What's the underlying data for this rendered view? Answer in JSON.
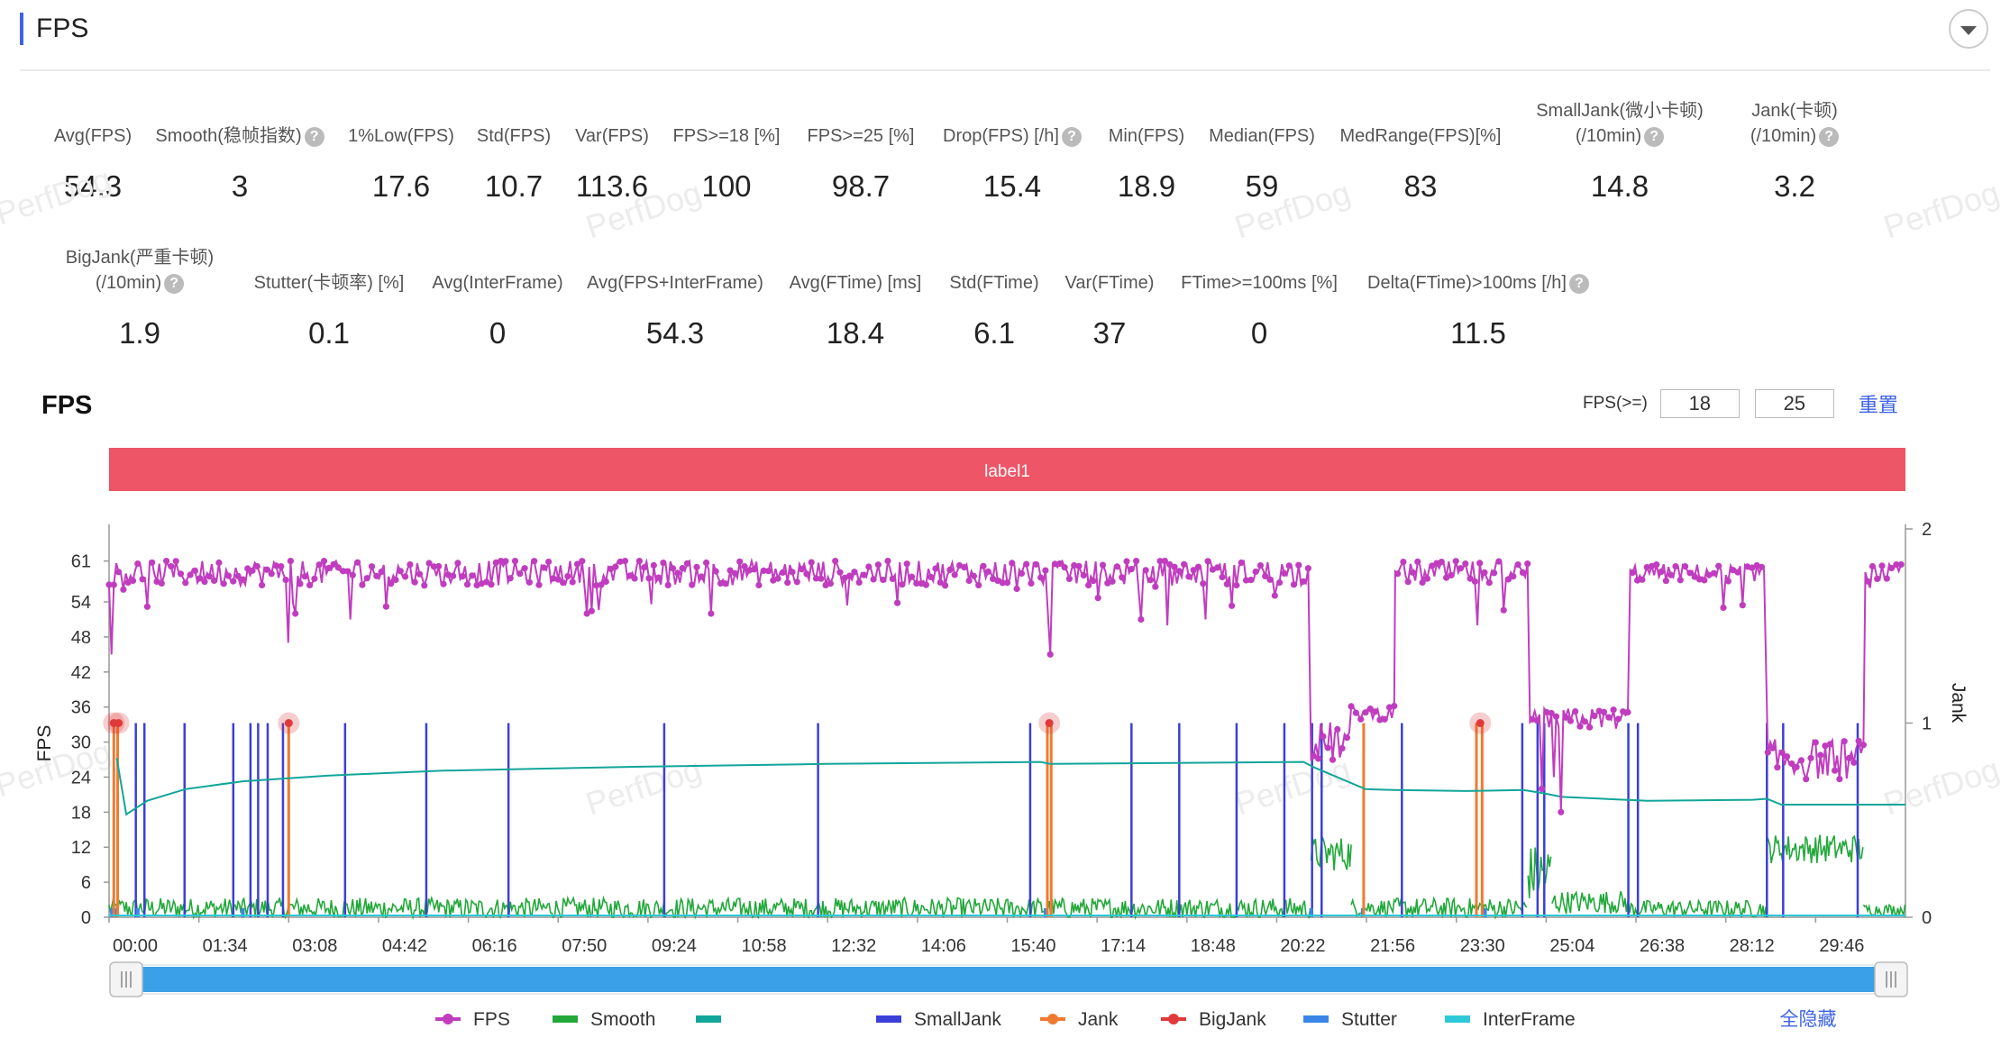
{
  "header": {
    "title": "FPS"
  },
  "metrics_row1": [
    {
      "label": "Avg(FPS)",
      "value": "54.3",
      "cx": 103,
      "help": false
    },
    {
      "label": "Smooth(稳帧指数)",
      "value": "3",
      "cx": 266,
      "help": true
    },
    {
      "label": "1%Low(FPS)",
      "value": "17.6",
      "cx": 445,
      "help": false
    },
    {
      "label": "Std(FPS)",
      "value": "10.7",
      "cx": 570,
      "help": false
    },
    {
      "label": "Var(FPS)",
      "value": "113.6",
      "cx": 679,
      "help": false
    },
    {
      "label": "FPS>=18 [%]",
      "value": "100",
      "cx": 806,
      "help": false
    },
    {
      "label": "FPS>=25 [%]",
      "value": "98.7",
      "cx": 955,
      "help": false
    },
    {
      "label": "Drop(FPS) [/h]",
      "value": "15.4",
      "cx": 1123,
      "help": true
    },
    {
      "label": "Min(FPS)",
      "value": "18.9",
      "cx": 1272,
      "help": false
    },
    {
      "label": "Median(FPS)",
      "value": "59",
      "cx": 1400,
      "help": false
    },
    {
      "label": "MedRange(FPS)[%]",
      "value": "83",
      "cx": 1576,
      "help": false
    },
    {
      "label": "SmallJank(微小卡顿)",
      "label2": "(/10min)",
      "value": "14.8",
      "cx": 1797,
      "help": true
    },
    {
      "label": "Jank(卡顿)",
      "label2": "(/10min)",
      "value": "3.2",
      "cx": 1991,
      "help": true
    }
  ],
  "metrics_row2": [
    {
      "label": "BigJank(严重卡顿)",
      "label2": "(/10min)",
      "value": "1.9",
      "cx": 155,
      "help": true
    },
    {
      "label": "Stutter(卡顿率) [%]",
      "value": "0.1",
      "cx": 365,
      "help": false
    },
    {
      "label": "Avg(InterFrame)",
      "value": "0",
      "cx": 552,
      "help": false
    },
    {
      "label": "Avg(FPS+InterFrame)",
      "value": "54.3",
      "cx": 749,
      "help": false
    },
    {
      "label": "Avg(FTime) [ms]",
      "value": "18.4",
      "cx": 949,
      "help": false
    },
    {
      "label": "Std(FTime)",
      "value": "6.1",
      "cx": 1103,
      "help": false
    },
    {
      "label": "Var(FTime)",
      "value": "37",
      "cx": 1231,
      "help": false
    },
    {
      "label": "FTime>=100ms [%]",
      "value": "0",
      "cx": 1397,
      "help": false
    },
    {
      "label": "Delta(FTime)>100ms [/h]",
      "value": "11.5",
      "cx": 1640,
      "help": true
    }
  ],
  "chart_section": {
    "title": "FPS",
    "fps_threshold_label": "FPS(>=)",
    "threshold_low": "18",
    "threshold_high": "25",
    "reset_label": "重置",
    "hide_all_label": "全隐藏"
  },
  "watermark": "PerfDog",
  "colors": {
    "fps": "#c03dbf",
    "smooth": "#22a83a",
    "teal": "#11a59a",
    "small_jank": "#3b3fd9",
    "jank": "#f07a30",
    "big_jank": "#e13a3a",
    "stutter": "#3a86e8",
    "interframe": "#2ec8d8",
    "banner": "#ee5566",
    "accent": "#3d63e6"
  },
  "chart_data": {
    "type": "line",
    "annotation": "label1",
    "ylabel": "FPS",
    "y2label": "Jank",
    "yticks": [
      0,
      6,
      12,
      18,
      24,
      30,
      36,
      42,
      48,
      54,
      61
    ],
    "y2ticks": [
      0,
      1,
      2
    ],
    "ylim": [
      0,
      66.5
    ],
    "y2lim": [
      0,
      2
    ],
    "xlabels": [
      "00:00",
      "01:34",
      "03:08",
      "04:42",
      "06:16",
      "07:50",
      "09:24",
      "10:58",
      "12:32",
      "14:06",
      "15:40",
      "17:14",
      "18:48",
      "20:22",
      "21:56",
      "23:30",
      "25:04",
      "26:38",
      "28:12",
      "29:46"
    ],
    "x_range_seconds": [
      0,
      1880
    ],
    "legend": [
      {
        "name": "FPS",
        "key": "fps"
      },
      {
        "name": "Smooth",
        "key": "smooth"
      },
      {
        "name": "",
        "key": "teal"
      },
      {
        "name": "SmallJank",
        "key": "small_jank"
      },
      {
        "name": "Jank",
        "key": "jank"
      },
      {
        "name": "BigJank",
        "key": "big_jank"
      },
      {
        "name": "Stutter",
        "key": "stutter"
      },
      {
        "name": "InterFrame",
        "key": "interframe"
      }
    ],
    "fps_segments": [
      {
        "t0": 0,
        "t1": 1256,
        "level": 59,
        "noise": 2.2
      },
      {
        "t0": 1258,
        "t1": 1300,
        "level": 30,
        "noise": 3.5
      },
      {
        "t0": 1300,
        "t1": 1346,
        "level": 35,
        "noise": 1.2
      },
      {
        "t0": 1346,
        "t1": 1350,
        "level": 59,
        "noise": 0.5
      },
      {
        "t0": 1352,
        "t1": 1485,
        "level": 59,
        "noise": 2.0
      },
      {
        "t0": 1487,
        "t1": 1590,
        "level": 34,
        "noise": 1.8
      },
      {
        "t0": 1592,
        "t1": 1734,
        "level": 59,
        "noise": 1.5
      },
      {
        "t0": 1736,
        "t1": 1836,
        "level": 27,
        "noise": 3.5
      },
      {
        "t0": 1838,
        "t1": 1880,
        "level": 59,
        "noise": 1.5
      }
    ],
    "fps_dips": [
      {
        "t": 3,
        "v": 45
      },
      {
        "t": 188,
        "v": 47
      },
      {
        "t": 196,
        "v": 52
      },
      {
        "t": 252,
        "v": 51
      },
      {
        "t": 500,
        "v": 52
      },
      {
        "t": 630,
        "v": 52
      },
      {
        "t": 983,
        "v": 52
      },
      {
        "t": 986,
        "v": 45
      },
      {
        "t": 1080,
        "v": 51
      },
      {
        "t": 1108,
        "v": 50
      },
      {
        "t": 1148,
        "v": 51
      },
      {
        "t": 1432,
        "v": 50
      },
      {
        "t": 1500,
        "v": 22
      },
      {
        "t": 1513,
        "v": 24
      },
      {
        "t": 1520,
        "v": 18
      },
      {
        "t": 1690,
        "v": 53
      }
    ],
    "teal_line": [
      {
        "t": 8,
        "v": 0.82
      },
      {
        "t": 18,
        "v": 0.53
      },
      {
        "t": 40,
        "v": 0.6
      },
      {
        "t": 80,
        "v": 0.66
      },
      {
        "t": 140,
        "v": 0.7
      },
      {
        "t": 230,
        "v": 0.73
      },
      {
        "t": 350,
        "v": 0.755
      },
      {
        "t": 550,
        "v": 0.775
      },
      {
        "t": 750,
        "v": 0.79
      },
      {
        "t": 975,
        "v": 0.8
      },
      {
        "t": 985,
        "v": 0.79
      },
      {
        "t": 1250,
        "v": 0.8
      },
      {
        "t": 1262,
        "v": 0.77
      },
      {
        "t": 1315,
        "v": 0.66
      },
      {
        "t": 1345,
        "v": 0.655
      },
      {
        "t": 1420,
        "v": 0.65
      },
      {
        "t": 1480,
        "v": 0.655
      },
      {
        "t": 1500,
        "v": 0.64
      },
      {
        "t": 1520,
        "v": 0.62
      },
      {
        "t": 1610,
        "v": 0.6
      },
      {
        "t": 1720,
        "v": 0.605
      },
      {
        "t": 1735,
        "v": 0.61
      },
      {
        "t": 1750,
        "v": 0.58
      },
      {
        "t": 1880,
        "v": 0.58
      }
    ],
    "small_jank_t": [
      28,
      37,
      79,
      130,
      148,
      156,
      166,
      182,
      247,
      332,
      418,
      581,
      742,
      964,
      1070,
      1120,
      1180,
      1230,
      1259,
      1269,
      1353,
      1479,
      1495,
      1502,
      1590,
      1600,
      1735,
      1752,
      1830
    ],
    "jank_t": [
      5,
      9,
      188,
      982,
      986,
      1313,
      1431,
      1437
    ],
    "big_jank_t": [
      5,
      10,
      188,
      984,
      1435
    ],
    "smooth_segments": [
      {
        "t0": 0,
        "t1": 1257,
        "level": 1.0,
        "noise": 1.8
      },
      {
        "t0": 1258,
        "t1": 1300,
        "level": 10,
        "noise": 3
      },
      {
        "t0": 1300,
        "t1": 1346,
        "level": 1.2,
        "noise": 1.5
      },
      {
        "t0": 1346,
        "t1": 1485,
        "level": 1.0,
        "noise": 1.8
      },
      {
        "t0": 1485,
        "t1": 1510,
        "level": 6,
        "noise": 5
      },
      {
        "t0": 1510,
        "t1": 1590,
        "level": 2,
        "noise": 2
      },
      {
        "t0": 1590,
        "t1": 1735,
        "level": 1.0,
        "noise": 1.5
      },
      {
        "t0": 1735,
        "t1": 1836,
        "level": 11,
        "noise": 2.5
      },
      {
        "t0": 1836,
        "t1": 1880,
        "level": 1.0,
        "noise": 1.0
      }
    ]
  }
}
